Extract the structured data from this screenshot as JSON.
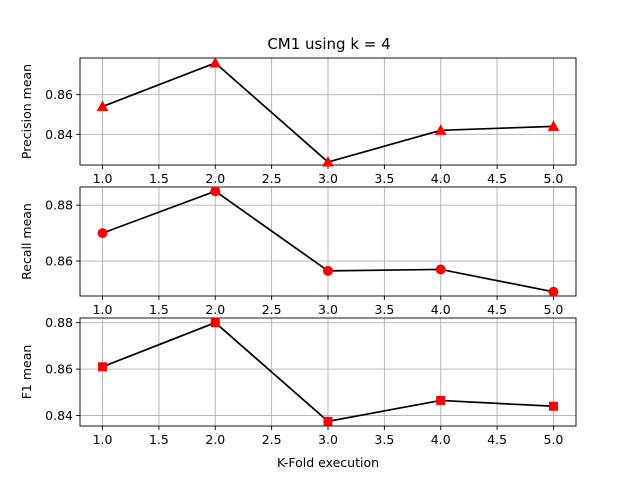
{
  "chart_data": {
    "type": "line",
    "title": "CM1 using k = 4",
    "grid": true,
    "line_color": "#000000",
    "marker_color": "#ff0000",
    "x": [
      1.0,
      2.0,
      3.0,
      4.0,
      5.0
    ],
    "subplots": [
      {
        "ylabel": "Precision mean",
        "marker": "triangle",
        "values": [
          0.854,
          0.876,
          0.826,
          0.842,
          0.844
        ],
        "xlim": [
          0.8,
          5.2
        ],
        "ylim": [
          0.8245,
          0.8785
        ],
        "xticks": [
          "1.0",
          "1.5",
          "2.0",
          "2.5",
          "3.0",
          "3.5",
          "4.0",
          "4.5",
          "5.0"
        ],
        "yticks": [
          "0.84",
          "0.86"
        ]
      },
      {
        "ylabel": "Recall mean",
        "marker": "circle",
        "values": [
          0.87,
          0.885,
          0.8565,
          0.857,
          0.849
        ],
        "xlim": [
          0.8,
          5.2
        ],
        "ylim": [
          0.8475,
          0.8865
        ],
        "xticks": [
          "1.0",
          "1.5",
          "2.0",
          "2.5",
          "3.0",
          "3.5",
          "4.0",
          "4.5",
          "5.0"
        ],
        "yticks": [
          "0.86",
          "0.88"
        ]
      },
      {
        "ylabel": "F1 mean",
        "marker": "square",
        "values": [
          0.861,
          0.88,
          0.8375,
          0.8465,
          0.844
        ],
        "xlim": [
          0.8,
          5.2
        ],
        "ylim": [
          0.8355,
          0.882
        ],
        "xticks": [
          "1.0",
          "1.5",
          "2.0",
          "2.5",
          "3.0",
          "3.5",
          "4.0",
          "4.5",
          "5.0"
        ],
        "yticks": [
          "0.84",
          "0.86",
          "0.88"
        ],
        "xlabel": "K-Fold execution"
      }
    ]
  }
}
